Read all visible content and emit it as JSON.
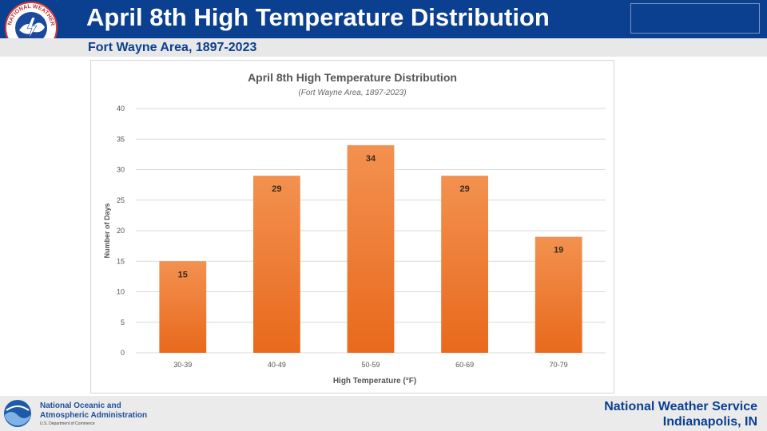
{
  "header": {
    "title": "April 8th High Temperature Distribution",
    "subtitle": "Fort Wayne Area, 1897-2023",
    "bg_color": "#0b3f8f"
  },
  "logos": {
    "nws_seal_text": "NATIONAL WEATHER SERVICE",
    "nws_seal_icon": "nws-seal-icon",
    "noaa_icon": "noaa-logo-icon"
  },
  "footer": {
    "noaa_name_line1": "National Oceanic and",
    "noaa_name_line2": "Atmospheric Administration",
    "noaa_dept": "U.S. Department of Commerce",
    "nws_name": "National Weather Service",
    "nws_location": "Indianapolis, IN"
  },
  "chart_data": {
    "type": "bar",
    "title": "April 8th High Temperature Distribution",
    "subtitle": "(Fort Wayne Area, 1897-2023)",
    "xlabel": "High Temperature (°F)",
    "ylabel": "Number of Days",
    "categories": [
      "30-39",
      "40-49",
      "50-59",
      "60-69",
      "70-79"
    ],
    "values": [
      15,
      29,
      34,
      29,
      19
    ],
    "ylim": [
      0,
      40
    ],
    "yticks": [
      0,
      5,
      10,
      15,
      20,
      25,
      30,
      35,
      40
    ],
    "grid": true,
    "data_labels": true,
    "bar_color": "#ee7a2c"
  }
}
